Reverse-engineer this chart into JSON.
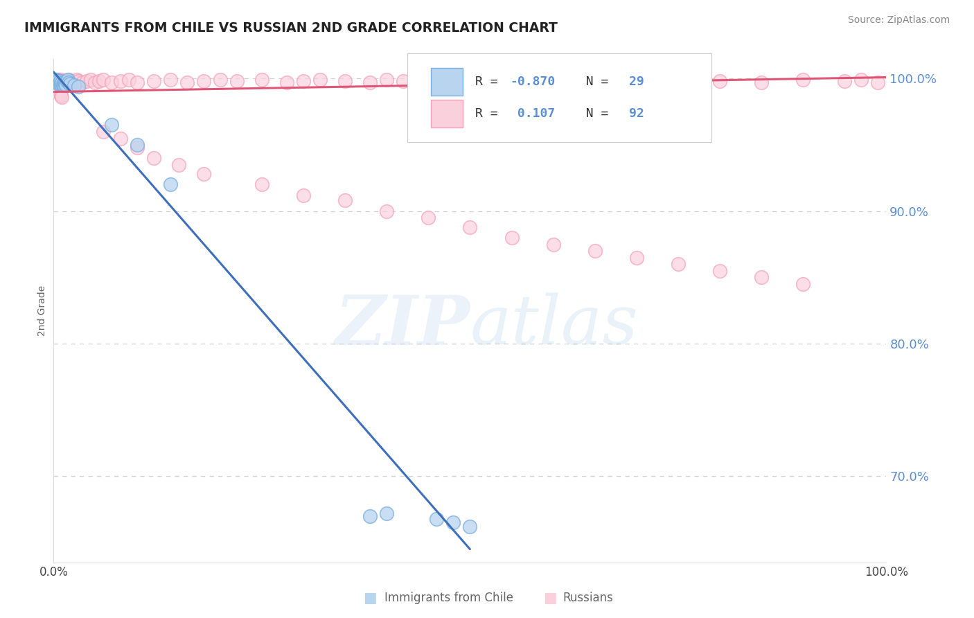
{
  "title": "IMMIGRANTS FROM CHILE VS RUSSIAN 2ND GRADE CORRELATION CHART",
  "source": "Source: ZipAtlas.com",
  "ylabel": "2nd Grade",
  "xlim": [
    0.0,
    1.0
  ],
  "ylim": [
    0.635,
    1.015
  ],
  "yticks": [
    0.7,
    0.8,
    0.9,
    1.0
  ],
  "right_tick_labels": [
    "70.0%",
    "80.0%",
    "90.0%",
    "100.0%"
  ],
  "xtick_labels": [
    "0.0%",
    "100.0%"
  ],
  "legend_blue_r": "R = ",
  "legend_blue_rv": "-0.870",
  "legend_blue_n": "  N = ",
  "legend_blue_nv": "29",
  "legend_pink_r": "R = ",
  "legend_pink_rv": " 0.107",
  "legend_pink_n": "  N = ",
  "legend_pink_nv": "92",
  "footer_blue": "Immigrants from Chile",
  "footer_pink": "Russians",
  "background_color": "#ffffff",
  "grid_color": "#cccccc",
  "watermark": "ZIPatlas",
  "blue_color": "#7aade0",
  "blue_fill": "#b8d4ee",
  "pink_color": "#f4a0b8",
  "pink_fill": "#fad0dd",
  "pink_line_color": "#e05575",
  "blue_line_color": "#3d6fbd",
  "right_label_color": "#5b8fd4",
  "title_color": "#222222",
  "blue_scatter_x": [
    0.001,
    0.002,
    0.003,
    0.004,
    0.005,
    0.006,
    0.007,
    0.008,
    0.009,
    0.01,
    0.011,
    0.012,
    0.013,
    0.014,
    0.015,
    0.016,
    0.017,
    0.018,
    0.02,
    0.025,
    0.03,
    0.07,
    0.1,
    0.14,
    0.38,
    0.4,
    0.46,
    0.48,
    0.5
  ],
  "blue_scatter_y": [
    0.999,
    0.998,
    0.999,
    0.997,
    0.998,
    0.996,
    0.997,
    0.998,
    0.996,
    0.997,
    0.996,
    0.995,
    0.997,
    0.996,
    0.995,
    0.998,
    0.999,
    0.997,
    0.996,
    0.995,
    0.994,
    0.965,
    0.95,
    0.92,
    0.67,
    0.672,
    0.668,
    0.665,
    0.662
  ],
  "pink_scatter_x": [
    0.001,
    0.002,
    0.003,
    0.004,
    0.005,
    0.006,
    0.007,
    0.008,
    0.009,
    0.01,
    0.011,
    0.012,
    0.013,
    0.014,
    0.015,
    0.016,
    0.017,
    0.018,
    0.019,
    0.02,
    0.022,
    0.025,
    0.028,
    0.03,
    0.035,
    0.04,
    0.045,
    0.05,
    0.055,
    0.06,
    0.07,
    0.08,
    0.09,
    0.1,
    0.12,
    0.14,
    0.16,
    0.18,
    0.2,
    0.22,
    0.25,
    0.28,
    0.3,
    0.32,
    0.35,
    0.38,
    0.4,
    0.42,
    0.45,
    0.48,
    0.5,
    0.55,
    0.6,
    0.65,
    0.7,
    0.75,
    0.8,
    0.85,
    0.9,
    0.95,
    0.97,
    0.99,
    0.06,
    0.08,
    0.1,
    0.12,
    0.15,
    0.18,
    0.25,
    0.3,
    0.35,
    0.4,
    0.45,
    0.5,
    0.55,
    0.6,
    0.65,
    0.7,
    0.75,
    0.8,
    0.85,
    0.9,
    0.001,
    0.002,
    0.003,
    0.004,
    0.005,
    0.006,
    0.007,
    0.008,
    0.009,
    0.01
  ],
  "pink_scatter_y": [
    0.999,
    0.998,
    0.999,
    0.997,
    0.998,
    0.999,
    0.997,
    0.998,
    0.999,
    0.997,
    0.998,
    0.996,
    0.997,
    0.998,
    0.996,
    0.997,
    0.998,
    0.999,
    0.997,
    0.996,
    0.998,
    0.997,
    0.999,
    0.998,
    0.997,
    0.998,
    0.999,
    0.997,
    0.998,
    0.999,
    0.997,
    0.998,
    0.999,
    0.997,
    0.998,
    0.999,
    0.997,
    0.998,
    0.999,
    0.998,
    0.999,
    0.997,
    0.998,
    0.999,
    0.998,
    0.997,
    0.999,
    0.998,
    0.997,
    0.999,
    0.998,
    0.997,
    0.999,
    0.998,
    0.997,
    0.999,
    0.998,
    0.997,
    0.999,
    0.998,
    0.999,
    0.997,
    0.96,
    0.955,
    0.948,
    0.94,
    0.935,
    0.928,
    0.92,
    0.912,
    0.908,
    0.9,
    0.895,
    0.888,
    0.88,
    0.875,
    0.87,
    0.865,
    0.86,
    0.855,
    0.85,
    0.845,
    0.996,
    0.994,
    0.993,
    0.992,
    0.991,
    0.99,
    0.989,
    0.988,
    0.987,
    0.986
  ],
  "blue_line_x": [
    0.0,
    0.5
  ],
  "blue_line_y": [
    1.005,
    0.645
  ],
  "pink_line_x": [
    0.0,
    1.0
  ],
  "pink_line_y": [
    0.99,
    1.001
  ]
}
